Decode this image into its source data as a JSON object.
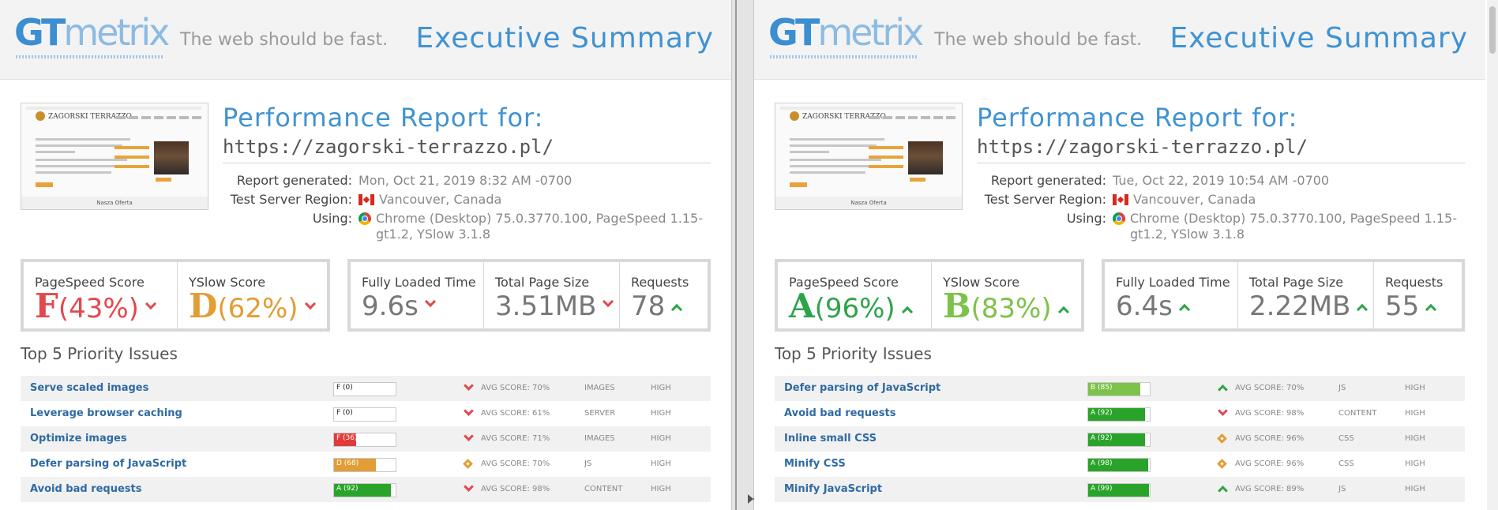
{
  "colors": {
    "accent_blue": "#3f93d3",
    "grade_red": "#e2494c",
    "grade_orange": "#e29d36",
    "grade_green": "#2ea44a",
    "grade_light_green": "#7dc24a"
  },
  "panels": [
    {
      "logo_text": {
        "gt": "GT",
        "metrix": "metrix"
      },
      "tagline": "The web should be fast.",
      "heading": "Executive Summary",
      "thumbnail": {
        "brand": "ZAGORSKI TERRAZZO",
        "footer": "Nasza Oferta"
      },
      "report": {
        "title": "Performance Report for:",
        "url": "https://zagorski-terrazzo.pl/",
        "generated_label": "Report generated:",
        "generated_value": "Mon, Oct 21, 2019 8:32 AM -0700",
        "region_label": "Test Server Region:",
        "region_value": "Vancouver, Canada",
        "using_label": "Using:",
        "using_value_line1": "Chrome (Desktop) 75.0.3770.100, PageSpeed 1.15-",
        "using_value_line2": "gt1.2, YSlow 3.1.8"
      },
      "scores": {
        "pagespeed_label": "PageSpeed Score",
        "pagespeed_grade": "F",
        "pagespeed_pct": "(43%)",
        "pagespeed_trend": "down",
        "yslow_label": "YSlow Score",
        "yslow_grade": "D",
        "yslow_pct": "(62%)",
        "yslow_trend": "down"
      },
      "metrics": {
        "load_label": "Fully Loaded Time",
        "load_value": "9.6s",
        "load_trend": "down",
        "size_label": "Total Page Size",
        "size_value": "3.51MB",
        "size_trend": "down",
        "req_label": "Requests",
        "req_value": "78",
        "req_trend": "up"
      },
      "issues_title": "Top 5 Priority Issues",
      "issues": [
        {
          "name": "Serve scaled images",
          "grade_text": "F (0)",
          "score_pct": 0,
          "fill_color": "#e2494c",
          "indicator": "down",
          "avg": "AVG SCORE: 70%",
          "type": "IMAGES",
          "priority": "HIGH"
        },
        {
          "name": "Leverage browser caching",
          "grade_text": "F (0)",
          "score_pct": 0,
          "fill_color": "#e2494c",
          "indicator": "down",
          "avg": "AVG SCORE: 61%",
          "type": "SERVER",
          "priority": "HIGH"
        },
        {
          "name": "Optimize images",
          "grade_text": "F (36)",
          "score_pct": 36,
          "fill_color": "#e23a3a",
          "indicator": "down",
          "avg": "AVG SCORE: 71%",
          "type": "IMAGES",
          "priority": "HIGH"
        },
        {
          "name": "Defer parsing of JavaScript",
          "grade_text": "D (68)",
          "score_pct": 68,
          "fill_color": "#e29d36",
          "indicator": "diamond",
          "avg": "AVG SCORE: 70%",
          "type": "JS",
          "priority": "HIGH"
        },
        {
          "name": "Avoid bad requests",
          "grade_text": "A (92)",
          "score_pct": 92,
          "fill_color": "#2aa32a",
          "indicator": "down",
          "avg": "AVG SCORE: 98%",
          "type": "CONTENT",
          "priority": "HIGH"
        }
      ]
    },
    {
      "logo_text": {
        "gt": "GT",
        "metrix": "metrix"
      },
      "tagline": "The web should be fast.",
      "heading": "Executive Summary",
      "thumbnail": {
        "brand": "ZAGORSKI TERRAZZO",
        "footer": "Nasza Oferta"
      },
      "report": {
        "title": "Performance Report for:",
        "url": "https://zagorski-terrazzo.pl/",
        "generated_label": "Report generated:",
        "generated_value": "Tue, Oct 22, 2019 10:54 AM -0700",
        "region_label": "Test Server Region:",
        "region_value": "Vancouver, Canada",
        "using_label": "Using:",
        "using_value_line1": "Chrome (Desktop) 75.0.3770.100, PageSpeed 1.15-",
        "using_value_line2": "gt1.2, YSlow 3.1.8"
      },
      "scores": {
        "pagespeed_label": "PageSpeed Score",
        "pagespeed_grade": "A",
        "pagespeed_pct": "(96%)",
        "pagespeed_trend": "up",
        "yslow_label": "YSlow Score",
        "yslow_grade": "B",
        "yslow_pct": "(83%)",
        "yslow_trend": "up"
      },
      "metrics": {
        "load_label": "Fully Loaded Time",
        "load_value": "6.4s",
        "load_trend": "up",
        "size_label": "Total Page Size",
        "size_value": "2.22MB",
        "size_trend": "up",
        "req_label": "Requests",
        "req_value": "55",
        "req_trend": "up"
      },
      "issues_title": "Top 5 Priority Issues",
      "issues": [
        {
          "name": "Defer parsing of JavaScript",
          "grade_text": "B (85)",
          "score_pct": 85,
          "fill_color": "#7dc24a",
          "indicator": "up",
          "avg": "AVG SCORE: 70%",
          "type": "JS",
          "priority": "HIGH"
        },
        {
          "name": "Avoid bad requests",
          "grade_text": "A (92)",
          "score_pct": 92,
          "fill_color": "#2aa32a",
          "indicator": "down",
          "avg": "AVG SCORE: 98%",
          "type": "CONTENT",
          "priority": "HIGH"
        },
        {
          "name": "Inline small CSS",
          "grade_text": "A (92)",
          "score_pct": 92,
          "fill_color": "#2aa32a",
          "indicator": "diamond",
          "avg": "AVG SCORE: 96%",
          "type": "CSS",
          "priority": "HIGH"
        },
        {
          "name": "Minify CSS",
          "grade_text": "A (98)",
          "score_pct": 98,
          "fill_color": "#2aa32a",
          "indicator": "diamond",
          "avg": "AVG SCORE: 96%",
          "type": "CSS",
          "priority": "HIGH"
        },
        {
          "name": "Minify JavaScript",
          "grade_text": "A (99)",
          "score_pct": 99,
          "fill_color": "#2aa32a",
          "indicator": "up",
          "avg": "AVG SCORE: 89%",
          "type": "JS",
          "priority": "HIGH"
        }
      ]
    }
  ]
}
